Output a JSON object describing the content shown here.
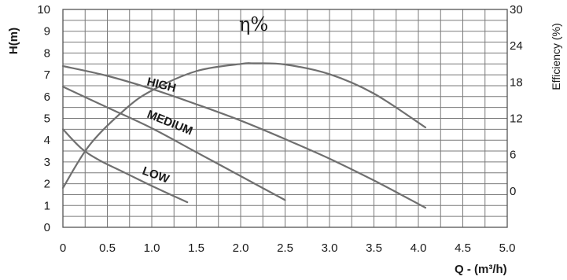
{
  "chart_data": {
    "type": "line",
    "ylabel": "H(m)",
    "xlabel": "Q - (m³/h)",
    "y2label": "Efficiency (%)",
    "xlim": [
      0,
      5
    ],
    "ylim": [
      0,
      10
    ],
    "y2lim": [
      -6,
      30
    ],
    "x_ticks": [
      "0",
      "0.5",
      "1.0",
      "1.5",
      "2.0",
      "2.5",
      "3.0",
      "3.5",
      "4.0",
      "4.5",
      "5.0"
    ],
    "y_ticks": [
      "0",
      "1",
      "2",
      "3",
      "4",
      "5",
      "6",
      "7",
      "8",
      "9",
      "10"
    ],
    "y2_ticks": [
      "0",
      "6",
      "12",
      "18",
      "24",
      "30"
    ],
    "grid": true,
    "annotations": {
      "efficiency_symbol": "η%"
    },
    "series": [
      {
        "name": "HIGH",
        "axis": "left",
        "x": [
          0,
          0.5,
          1.0,
          1.5,
          2.0,
          2.5,
          3.0,
          3.5,
          4.08
        ],
        "y": [
          7.4,
          6.95,
          6.35,
          5.65,
          4.9,
          4.05,
          3.15,
          2.15,
          0.9
        ]
      },
      {
        "name": "MEDIUM",
        "axis": "left",
        "x": [
          0,
          0.5,
          1.0,
          1.5,
          2.0,
          2.5
        ],
        "y": [
          6.45,
          5.5,
          4.55,
          3.45,
          2.35,
          1.25
        ]
      },
      {
        "name": "LOW",
        "axis": "left",
        "x": [
          0,
          0.2,
          0.4,
          0.7,
          1.0,
          1.4
        ],
        "y": [
          4.5,
          3.65,
          3.1,
          2.5,
          1.9,
          1.15
        ]
      },
      {
        "name": "η%",
        "axis": "right",
        "x": [
          0,
          0.3,
          0.7,
          1.0,
          1.5,
          2.0,
          2.15,
          2.5,
          3.0,
          3.5,
          4.08
        ],
        "y": [
          0.5,
          7.6,
          13.5,
          16.6,
          19.8,
          21.0,
          21.1,
          20.9,
          19.3,
          16.1,
          10.5
        ]
      }
    ]
  }
}
